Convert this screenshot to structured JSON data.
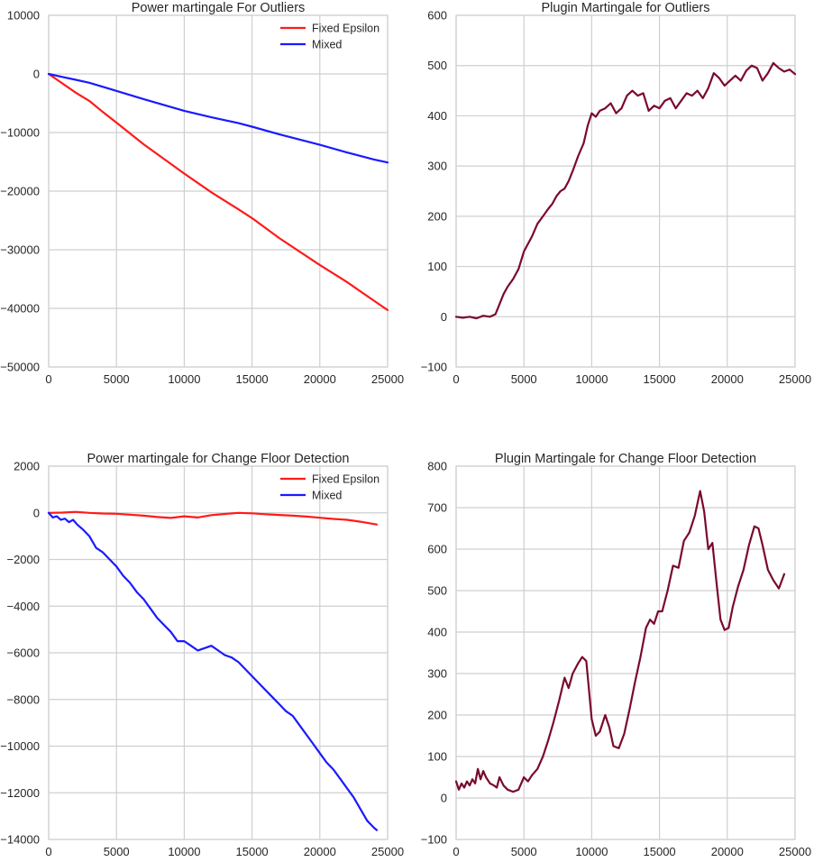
{
  "chart_data": [
    {
      "type": "line",
      "title": "Power martingale For Outliers",
      "xlim": [
        0,
        25000
      ],
      "ylim": [
        -50000,
        10000
      ],
      "xticks": [
        0,
        5000,
        10000,
        15000,
        20000,
        25000
      ],
      "yticks": [
        -50000,
        -40000,
        -30000,
        -20000,
        -10000,
        0,
        10000
      ],
      "grid": true,
      "legend": "top-right",
      "series": [
        {
          "name": "Fixed Epsilon",
          "color": "#ff1a1a",
          "x": [
            0,
            1000,
            2000,
            3000,
            4000,
            5000,
            7000,
            10000,
            12000,
            14000,
            15000,
            17000,
            20000,
            22000,
            24000,
            25000
          ],
          "y": [
            0,
            -1600,
            -3200,
            -4600,
            -6500,
            -8300,
            -12000,
            -17000,
            -20200,
            -23100,
            -24600,
            -28000,
            -32600,
            -35500,
            -38700,
            -40300
          ]
        },
        {
          "name": "Mixed",
          "color": "#1a1aff",
          "x": [
            0,
            1000,
            2000,
            3000,
            4000,
            5000,
            7000,
            10000,
            12000,
            14000,
            15000,
            17000,
            20000,
            22000,
            24000,
            25000
          ],
          "y": [
            0,
            -500,
            -1000,
            -1500,
            -2200,
            -2900,
            -4300,
            -6300,
            -7400,
            -8400,
            -9000,
            -10300,
            -12100,
            -13400,
            -14600,
            -15100
          ]
        }
      ]
    },
    {
      "type": "line",
      "title": "Plugin Martingale for Outliers",
      "xlim": [
        0,
        25000
      ],
      "ylim": [
        -100,
        600
      ],
      "xticks": [
        0,
        5000,
        10000,
        15000,
        20000,
        25000
      ],
      "yticks": [
        -100,
        0,
        100,
        200,
        300,
        400,
        500,
        600
      ],
      "grid": true,
      "series": [
        {
          "color": "#7a0a2c",
          "x": [
            0,
            500,
            1000,
            1500,
            2000,
            2500,
            2900,
            3200,
            3500,
            3800,
            4200,
            4600,
            5000,
            5300,
            5600,
            6000,
            6400,
            6800,
            7100,
            7400,
            7700,
            8000,
            8300,
            8600,
            9000,
            9400,
            9700,
            10000,
            10300,
            10600,
            11000,
            11400,
            11800,
            12200,
            12600,
            13000,
            13400,
            13800,
            14200,
            14600,
            15000,
            15400,
            15800,
            16200,
            16600,
            17000,
            17400,
            17800,
            18200,
            18600,
            19000,
            19400,
            19800,
            20200,
            20600,
            21000,
            21400,
            21800,
            22200,
            22600,
            23000,
            23400,
            23800,
            24200,
            24600,
            25000
          ],
          "y": [
            0,
            -2,
            0,
            -3,
            2,
            0,
            5,
            25,
            45,
            60,
            75,
            95,
            130,
            145,
            160,
            185,
            200,
            215,
            225,
            240,
            250,
            255,
            270,
            290,
            320,
            345,
            380,
            405,
            398,
            410,
            415,
            425,
            405,
            415,
            440,
            450,
            440,
            445,
            410,
            420,
            415,
            430,
            435,
            415,
            430,
            445,
            440,
            450,
            435,
            455,
            485,
            475,
            460,
            470,
            480,
            470,
            490,
            500,
            495,
            470,
            485,
            505,
            495,
            488,
            492,
            483
          ]
        }
      ]
    },
    {
      "type": "line",
      "title": "Power martingale for Change Floor Detection",
      "xlim": [
        0,
        25000
      ],
      "ylim": [
        -14000,
        2000
      ],
      "xticks": [
        0,
        5000,
        10000,
        15000,
        20000,
        25000
      ],
      "yticks": [
        -14000,
        -12000,
        -10000,
        -8000,
        -6000,
        -4000,
        -2000,
        0,
        2000
      ],
      "grid": true,
      "legend": "top-right",
      "series": [
        {
          "name": "Fixed Epsilon",
          "color": "#ff1a1a",
          "x": [
            0,
            1000,
            2000,
            3000,
            4000,
            5000,
            6000,
            7000,
            8000,
            9000,
            10000,
            11000,
            12000,
            13000,
            14000,
            15000,
            16000,
            17000,
            18000,
            19000,
            20000,
            21000,
            22000,
            23000,
            24000,
            24200
          ],
          "y": [
            0,
            10,
            40,
            0,
            -30,
            -40,
            -80,
            -120,
            -180,
            -220,
            -150,
            -200,
            -100,
            -50,
            0,
            -20,
            -60,
            -90,
            -120,
            -160,
            -210,
            -260,
            -300,
            -380,
            -480,
            -500
          ]
        },
        {
          "name": "Mixed",
          "color": "#1a1aff",
          "x": [
            0,
            300,
            600,
            900,
            1200,
            1500,
            1800,
            2100,
            2500,
            3000,
            3500,
            4000,
            4500,
            5000,
            5500,
            6000,
            6500,
            7000,
            7500,
            8000,
            8500,
            9000,
            9500,
            10000,
            10500,
            11000,
            11500,
            12000,
            12500,
            13000,
            13500,
            14000,
            14500,
            15000,
            15500,
            16000,
            16500,
            17000,
            17500,
            18000,
            18500,
            19000,
            19500,
            20000,
            20500,
            21000,
            21500,
            22000,
            22500,
            23000,
            23500,
            24000,
            24200
          ],
          "y": [
            0,
            -200,
            -150,
            -300,
            -250,
            -400,
            -300,
            -500,
            -700,
            -1000,
            -1500,
            -1700,
            -2000,
            -2300,
            -2700,
            -3000,
            -3400,
            -3700,
            -4100,
            -4500,
            -4800,
            -5100,
            -5500,
            -5500,
            -5700,
            -5900,
            -5800,
            -5700,
            -5900,
            -6100,
            -6200,
            -6400,
            -6700,
            -7000,
            -7300,
            -7600,
            -7900,
            -8200,
            -8500,
            -8700,
            -9100,
            -9500,
            -9900,
            -10300,
            -10700,
            -11000,
            -11400,
            -11800,
            -12200,
            -12700,
            -13200,
            -13500,
            -13600
          ]
        }
      ]
    },
    {
      "type": "line",
      "title": "Plugin Martingale for Change Floor Detection",
      "xlim": [
        0,
        25000
      ],
      "ylim": [
        -100,
        800
      ],
      "xticks": [
        0,
        5000,
        10000,
        15000,
        20000,
        25000
      ],
      "yticks": [
        -100,
        0,
        100,
        200,
        300,
        400,
        500,
        600,
        700,
        800
      ],
      "grid": true,
      "series": [
        {
          "color": "#7a0a2c",
          "x": [
            0,
            200,
            400,
            600,
            800,
            1000,
            1200,
            1400,
            1600,
            1800,
            2000,
            2200,
            2500,
            2800,
            3000,
            3200,
            3500,
            3800,
            4200,
            4600,
            5000,
            5300,
            5600,
            6000,
            6400,
            6800,
            7200,
            7600,
            8000,
            8300,
            8600,
            9000,
            9300,
            9600,
            10000,
            10300,
            10600,
            11000,
            11300,
            11600,
            12000,
            12400,
            12800,
            13200,
            13600,
            14000,
            14300,
            14600,
            14900,
            15200,
            15600,
            16000,
            16400,
            16800,
            17200,
            17600,
            18000,
            18300,
            18600,
            18900,
            19200,
            19500,
            19800,
            20100,
            20400,
            20800,
            21200,
            21600,
            22000,
            22300,
            22600,
            23000,
            23400,
            23800,
            24200
          ],
          "y": [
            40,
            20,
            35,
            25,
            40,
            30,
            45,
            35,
            70,
            45,
            65,
            50,
            35,
            30,
            25,
            50,
            30,
            20,
            15,
            20,
            50,
            40,
            55,
            70,
            100,
            140,
            185,
            235,
            290,
            265,
            300,
            325,
            340,
            330,
            190,
            150,
            160,
            200,
            170,
            125,
            120,
            155,
            215,
            280,
            340,
            410,
            430,
            420,
            450,
            450,
            500,
            560,
            555,
            620,
            640,
            680,
            740,
            690,
            600,
            615,
            520,
            430,
            405,
            410,
            460,
            510,
            550,
            610,
            655,
            650,
            610,
            550,
            525,
            505,
            540
          ]
        }
      ]
    }
  ]
}
